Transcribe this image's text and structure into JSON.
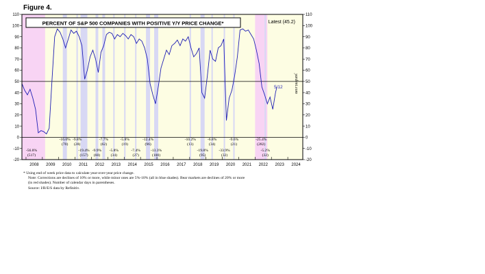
{
  "figure_label": "Figure 4.",
  "chart_data": {
    "type": "line",
    "title": "PERCENT OF S&P 500 COMPANIES WITH POSITIVE Y/Y PRICE CHANGE*",
    "latest_label": "Latest (45.2)",
    "end_label": "5/12",
    "watermark": "yardeni.com",
    "x_range": [
      "2007-10",
      "2024-12"
    ],
    "ylim": [
      -20,
      110
    ],
    "y_ticks": [
      -20,
      -10,
      0,
      10,
      20,
      30,
      40,
      50,
      60,
      70,
      80,
      90,
      100,
      110
    ],
    "x_tick_labels": [
      "2008",
      "2009",
      "2010",
      "2011",
      "2012",
      "2013",
      "2014",
      "2015",
      "2016",
      "2017",
      "2018",
      "2019",
      "2020",
      "2021",
      "2022",
      "2023",
      "2024"
    ],
    "reference_lines": [
      0,
      50
    ],
    "series": [
      {
        "x": [
          "2007-10",
          "2007-12",
          "2008-02",
          "2008-04",
          "2008-06",
          "2008-08",
          "2008-10",
          "2008-12",
          "2009-02",
          "2009-04",
          "2009-06",
          "2009-08",
          "2009-10",
          "2009-12",
          "2010-02",
          "2010-04",
          "2010-06",
          "2010-08",
          "2010-10",
          "2010-12",
          "2011-02",
          "2011-04",
          "2011-06",
          "2011-08",
          "2011-10",
          "2011-12",
          "2012-02",
          "2012-04",
          "2012-06",
          "2012-08",
          "2012-10",
          "2012-12",
          "2013-02",
          "2013-04",
          "2013-06",
          "2013-08",
          "2013-10",
          "2013-12",
          "2014-02",
          "2014-04",
          "2014-06",
          "2014-08",
          "2014-10",
          "2014-12",
          "2015-02",
          "2015-04",
          "2015-06",
          "2015-08",
          "2015-10",
          "2015-12",
          "2016-02",
          "2016-04",
          "2016-06",
          "2016-08",
          "2016-10",
          "2016-12",
          "2017-02",
          "2017-04",
          "2017-06",
          "2017-08",
          "2017-10",
          "2017-12",
          "2018-02",
          "2018-04",
          "2018-06",
          "2018-08",
          "2018-10",
          "2018-12",
          "2019-02",
          "2019-04",
          "2019-06",
          "2019-08",
          "2019-10",
          "2019-12",
          "2020-02",
          "2020-04",
          "2020-06",
          "2020-08",
          "2020-10",
          "2020-12",
          "2021-02",
          "2021-04",
          "2021-06",
          "2021-08",
          "2021-10",
          "2021-12",
          "2022-02",
          "2022-04",
          "2022-06",
          "2022-08",
          "2022-10",
          "2022-12",
          "2023-02",
          "2023-04",
          "2023-05"
        ],
        "values": [
          48,
          42,
          38,
          43,
          35,
          25,
          4,
          6,
          5,
          3,
          8,
          50,
          90,
          97,
          94,
          88,
          80,
          88,
          96,
          93,
          95,
          90,
          82,
          52,
          60,
          72,
          78,
          70,
          58,
          76,
          82,
          92,
          94,
          93,
          88,
          92,
          90,
          93,
          91,
          88,
          92,
          90,
          84,
          88,
          86,
          80,
          70,
          48,
          38,
          30,
          45,
          62,
          70,
          78,
          74,
          82,
          84,
          87,
          82,
          88,
          86,
          90,
          80,
          72,
          75,
          80,
          40,
          35,
          55,
          78,
          70,
          68,
          80,
          82,
          88,
          15,
          35,
          42,
          55,
          72,
          96,
          97,
          95,
          96,
          92,
          88,
          78,
          66,
          45,
          38,
          30,
          36,
          25,
          40,
          45
        ]
      }
    ],
    "corrections": [
      {
        "start": "2010-04",
        "end": "2010-07",
        "label": "-16.0%",
        "days": "(70)"
      },
      {
        "start": "2011-02",
        "end": "2011-03",
        "label": "-9.8%",
        "days": "(28)"
      },
      {
        "start": "2011-05",
        "end": "2011-10",
        "label": "-19.4%",
        "days": "(157)"
      },
      {
        "start": "2012-04",
        "end": "2012-06",
        "label": "-9.9%",
        "days": "(60)"
      },
      {
        "start": "2012-09",
        "end": "2012-11",
        "label": "-7.7%",
        "days": "(62)"
      },
      {
        "start": "2013-05",
        "end": "2013-06",
        "label": "-5.8%",
        "days": "(34)"
      },
      {
        "start": "2014-01",
        "end": "2014-02",
        "label": "-5.8%",
        "days": "(19)"
      },
      {
        "start": "2014-09",
        "end": "2014-10",
        "label": "-7.4%",
        "days": "(27)"
      },
      {
        "start": "2015-05",
        "end": "2015-08",
        "label": "-12.4%",
        "days": "(96)"
      },
      {
        "start": "2015-11",
        "end": "2016-02",
        "label": "-13.3%",
        "days": "(100)"
      },
      {
        "start": "2018-01",
        "end": "2018-02",
        "label": "-10.2%",
        "days": "(13)"
      },
      {
        "start": "2018-09",
        "end": "2018-12",
        "label": "-19.8%",
        "days": "(95)"
      },
      {
        "start": "2019-05",
        "end": "2019-06",
        "label": "-6.8%",
        "days": "(34)"
      },
      {
        "start": "2020-02",
        "end": "2020-03",
        "label": "-33.9%",
        "days": "(32)"
      },
      {
        "start": "2020-09",
        "end": "2020-10",
        "label": "-9.6%",
        "days": "(21)"
      },
      {
        "start": "2022-08",
        "end": "2022-09",
        "label": "-5.2%",
        "days": "(32)"
      }
    ],
    "bear_markets": [
      {
        "start": "2007-10",
        "end": "2009-03",
        "label": "-56.8%",
        "days": "(517)"
      },
      {
        "start": "2022-01",
        "end": "2022-10",
        "label": "-25.4%",
        "days": "(282)"
      }
    ],
    "colors": {
      "bear_shade": "#f8d4f4",
      "correction_shade": "#d8d8f4",
      "background": "#fdfde3",
      "line": "#1e1eb4"
    }
  },
  "notes": [
    "*   Using end of week price data to calculate year-over-year price change.",
    "Note: Corrections are declines of 10% or more, while minor ones are 5%-10% (all in blue shades). Bear markets are declines of 20% or more",
    "(in red shades). Number of calendar days in parentheses.",
    "Source: I/B/E/S data by Refinitiv."
  ]
}
